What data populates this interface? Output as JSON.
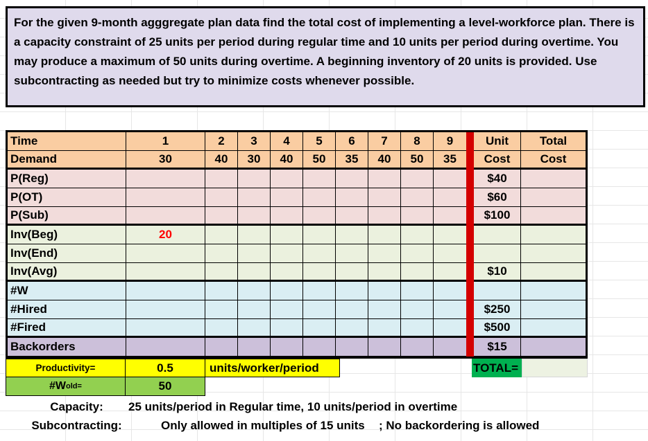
{
  "instructions": {
    "text": "For the given 9-month agggregate plan data find the total cost of implementing a level-workforce plan. There is a capacity constraint of 25 units per period during regular time and 10 units per period during overtime. You may produce a maximum of 50 units during overtime. A beginning inventory of 20 units is provided. Use subcontracting as needed but try to minimize costs whenever possible."
  },
  "table": {
    "header_row": {
      "label": "Time",
      "periods": [
        "1",
        "2",
        "3",
        "4",
        "5",
        "6",
        "7",
        "8",
        "9"
      ],
      "unit": "Unit",
      "total": "Total"
    },
    "demand_row": {
      "label": "Demand",
      "values": [
        "30",
        "40",
        "30",
        "40",
        "50",
        "35",
        "40",
        "50",
        "35"
      ],
      "unit": "Cost",
      "total": "Cost"
    },
    "body_rows": [
      {
        "label": "P(Reg)",
        "group": "pink",
        "unit_cost": "$40",
        "period1": "",
        "period1_red": false,
        "section_end": false
      },
      {
        "label": "P(OT)",
        "group": "pink",
        "unit_cost": "$60",
        "period1": "",
        "period1_red": false,
        "section_end": false
      },
      {
        "label": "P(Sub)",
        "group": "pink",
        "unit_cost": "$100",
        "period1": "",
        "period1_red": false,
        "section_end": true
      },
      {
        "label": "Inv(Beg)",
        "group": "green",
        "unit_cost": "",
        "period1": "20",
        "period1_red": true,
        "section_end": false
      },
      {
        "label": "Inv(End)",
        "group": "green",
        "unit_cost": "",
        "period1": "",
        "period1_red": false,
        "section_end": false
      },
      {
        "label": "Inv(Avg)",
        "group": "green",
        "unit_cost": "$10",
        "period1": "",
        "period1_red": false,
        "section_end": true
      },
      {
        "label": "#W",
        "group": "blue",
        "unit_cost": "",
        "period1": "",
        "period1_red": false,
        "section_end": false
      },
      {
        "label": "#Hired",
        "group": "blue",
        "unit_cost": "$250",
        "period1": "",
        "period1_red": false,
        "section_end": false
      },
      {
        "label": "#Fired",
        "group": "blue",
        "unit_cost": "$500",
        "period1": "",
        "period1_red": false,
        "section_end": true
      },
      {
        "label": "Backorders",
        "group": "purple",
        "unit_cost": "$15",
        "period1": "",
        "period1_red": false,
        "section_end": false
      }
    ]
  },
  "footer": {
    "productivity_label": "Productivity=",
    "productivity_value": "0.5",
    "productivity_units": "units/worker/period",
    "total_label": "TOTAL=",
    "total_value": "",
    "w_old_label_main": "#W",
    "w_old_label_sub": "old=",
    "w_old_value": "50",
    "capacity_label": "Capacity:",
    "capacity_text": "25 units/period in Regular time, 10 units/period in overtime",
    "subcontracting_label": "Subcontracting:",
    "subcontracting_text": "Only allowed in multiples of 15 units",
    "backordering_text": "; No backordering is allowed"
  },
  "colors": {
    "note_fill": "#DFDAEC",
    "header_fill": "#FACDA2",
    "production_fill": "#F2DCDB",
    "inventory_fill": "#EBF1DE",
    "workforce_fill": "#DAEEF3",
    "backorders_fill": "#CCC0DA",
    "divider_red": "#D40000",
    "beg_inventory_red": "#FF0000",
    "highlight_yellow": "#FFFF00",
    "total_green": "#00B050",
    "wold_green": "#92D050",
    "total_value_fill": "#EDF2E2"
  }
}
